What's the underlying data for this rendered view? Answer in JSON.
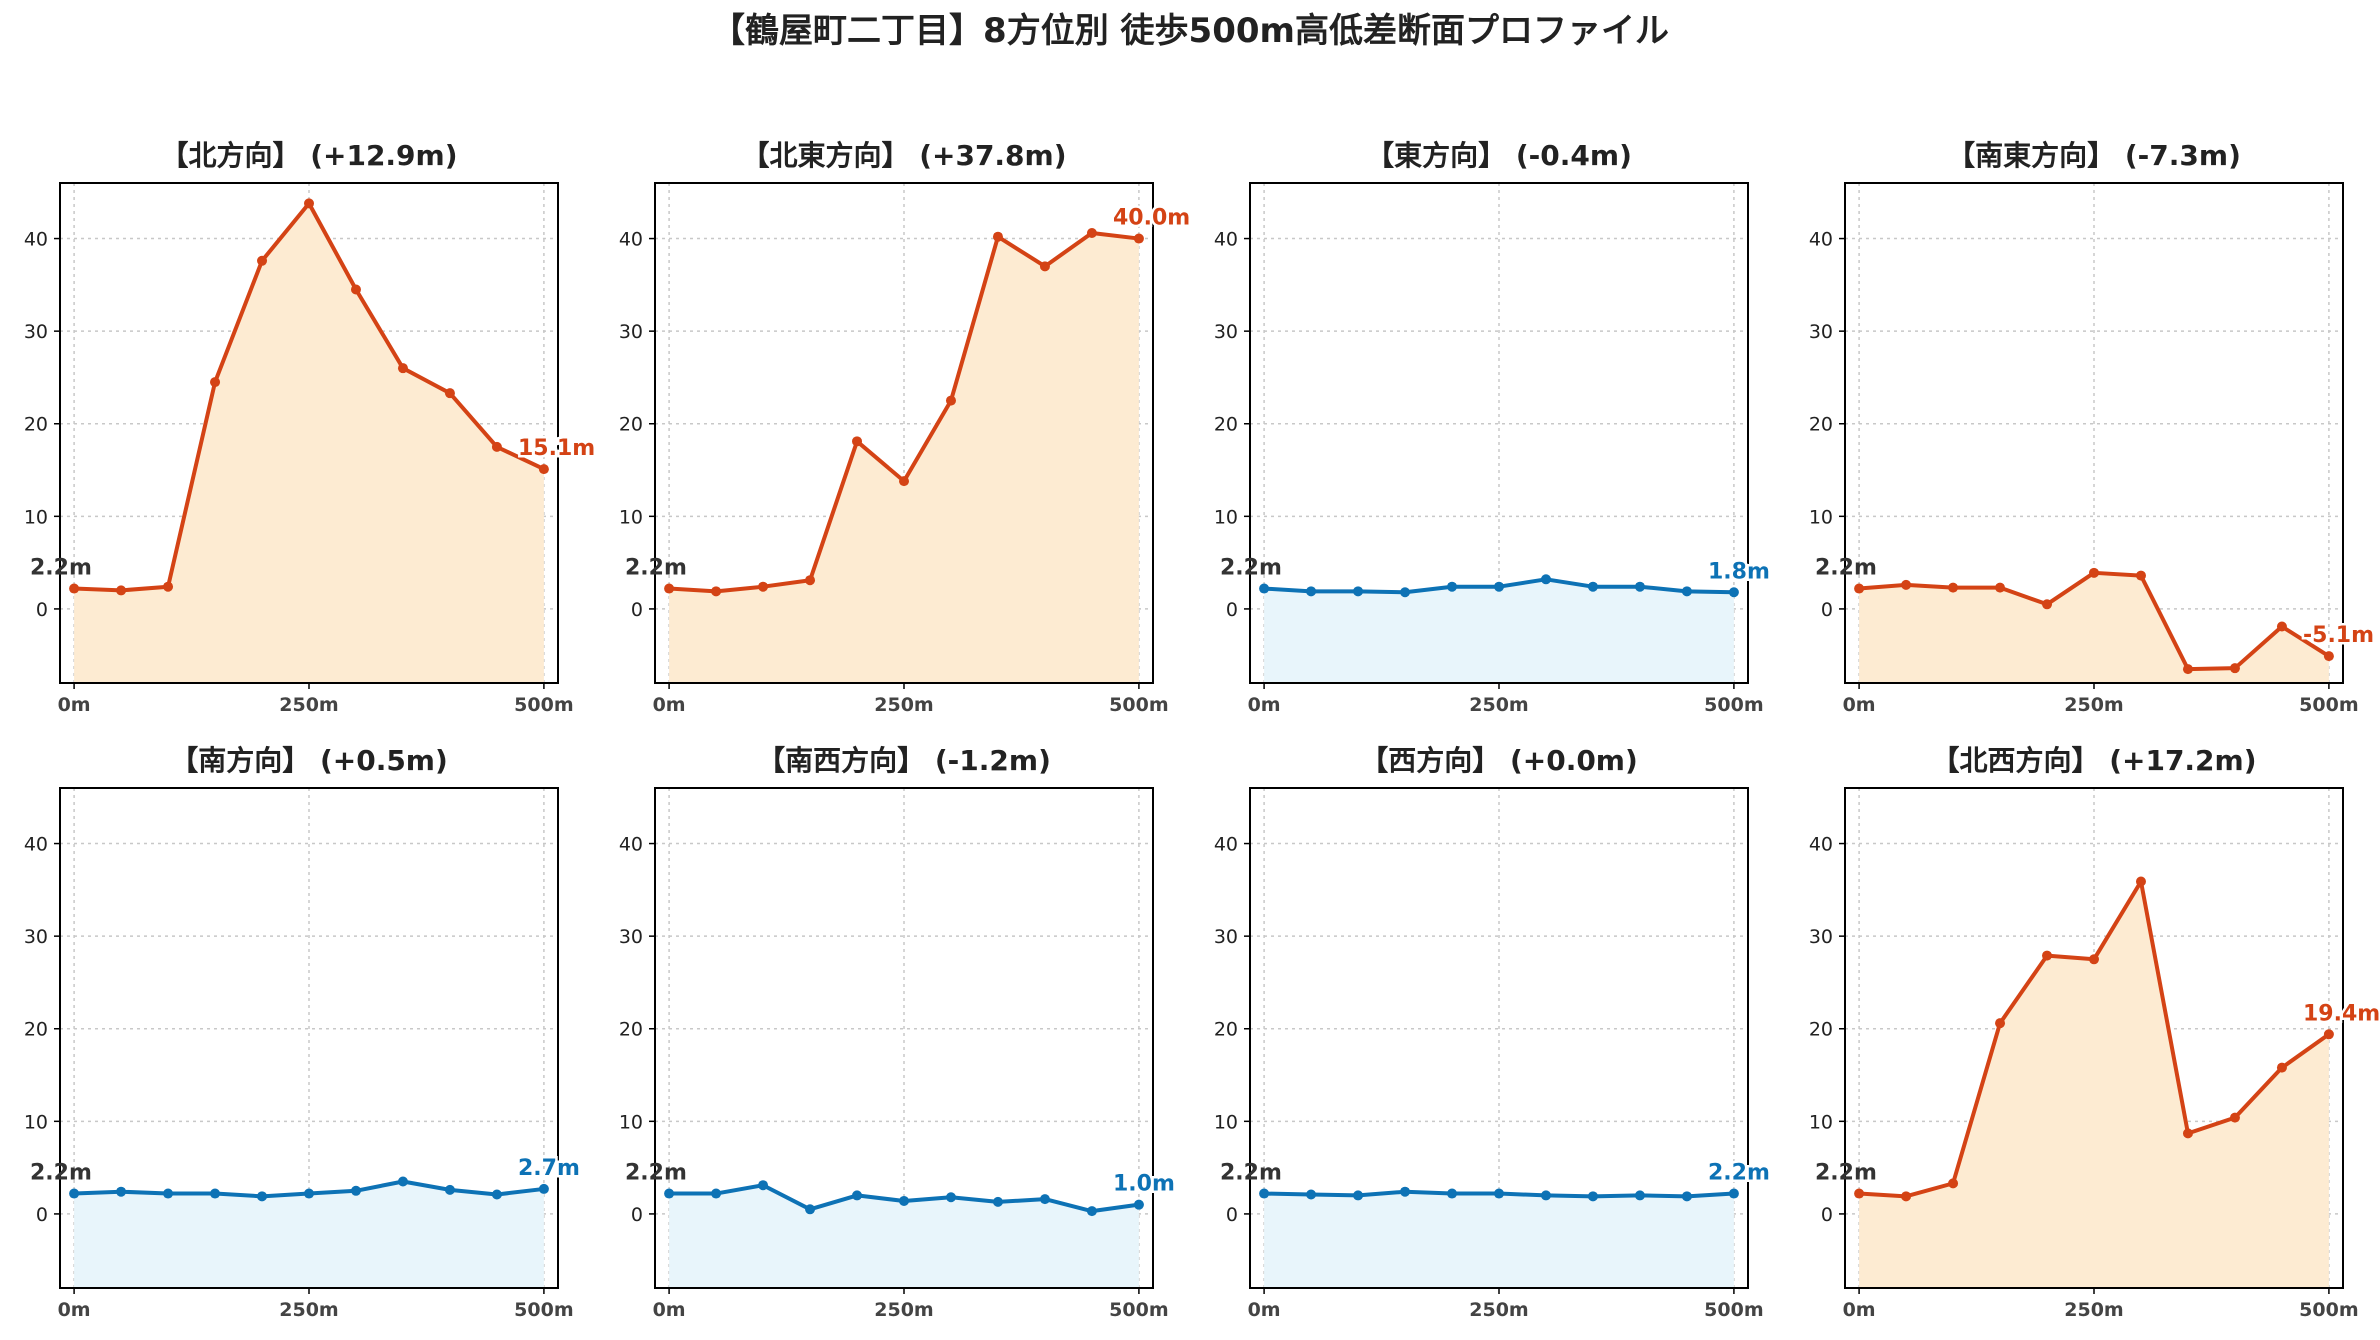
{
  "title": "【鶴屋町二丁目】8方位別 徒歩500m高低差断面プロファイル",
  "colors": {
    "up_line": "#d44315",
    "up_fill": "#fdebd2",
    "flat_line": "#0d72b5",
    "flat_fill": "#e8f5fb",
    "start_label": "#333333"
  },
  "chart_data": [
    {
      "type": "area",
      "title": "【北方向】 (+12.9m)",
      "x": [
        0,
        50,
        100,
        150,
        200,
        250,
        300,
        350,
        400,
        450,
        500
      ],
      "values": [
        2.2,
        2.0,
        2.4,
        24.5,
        37.6,
        43.8,
        34.5,
        26.0,
        23.3,
        17.5,
        15.1
      ],
      "trend": "up",
      "start_label": "2.2m",
      "end_label": "15.1m",
      "xticks": [
        "0m",
        "250m",
        "500m"
      ],
      "xtick_values": [
        0,
        250,
        500
      ],
      "yticks": [
        "0",
        "10",
        "20",
        "30",
        "40"
      ],
      "ytick_values": [
        0,
        10,
        20,
        30,
        40
      ],
      "xlim": [
        -15,
        515
      ],
      "ylim": [
        -8,
        46
      ],
      "grid": true
    },
    {
      "type": "area",
      "title": "【北東方向】 (+37.8m)",
      "x": [
        0,
        50,
        100,
        150,
        200,
        250,
        300,
        350,
        400,
        450,
        500
      ],
      "values": [
        2.2,
        1.9,
        2.4,
        3.1,
        18.1,
        13.8,
        22.5,
        40.2,
        37.0,
        40.6,
        40.0
      ],
      "trend": "up",
      "start_label": "2.2m",
      "end_label": "40.0m",
      "xticks": [
        "0m",
        "250m",
        "500m"
      ],
      "xtick_values": [
        0,
        250,
        500
      ],
      "yticks": [
        "0",
        "10",
        "20",
        "30",
        "40"
      ],
      "ytick_values": [
        0,
        10,
        20,
        30,
        40
      ],
      "xlim": [
        -15,
        515
      ],
      "ylim": [
        -8,
        46
      ],
      "grid": true
    },
    {
      "type": "area",
      "title": "【東方向】 (-0.4m)",
      "x": [
        0,
        50,
        100,
        150,
        200,
        250,
        300,
        350,
        400,
        450,
        500
      ],
      "values": [
        2.2,
        1.9,
        1.9,
        1.8,
        2.4,
        2.4,
        3.2,
        2.4,
        2.4,
        1.9,
        1.8
      ],
      "trend": "flat",
      "start_label": "2.2m",
      "end_label": "1.8m",
      "xticks": [
        "0m",
        "250m",
        "500m"
      ],
      "xtick_values": [
        0,
        250,
        500
      ],
      "yticks": [
        "0",
        "10",
        "20",
        "30",
        "40"
      ],
      "ytick_values": [
        0,
        10,
        20,
        30,
        40
      ],
      "xlim": [
        -15,
        515
      ],
      "ylim": [
        -8,
        46
      ],
      "grid": true
    },
    {
      "type": "area",
      "title": "【南東方向】 (-7.3m)",
      "x": [
        0,
        50,
        100,
        150,
        200,
        250,
        300,
        350,
        400,
        450,
        500
      ],
      "values": [
        2.2,
        2.6,
        2.3,
        2.3,
        0.5,
        3.9,
        3.6,
        -6.5,
        -6.4,
        -1.9,
        -5.1
      ],
      "trend": "up",
      "start_label": "2.2m",
      "end_label": "-5.1m",
      "xticks": [
        "0m",
        "250m",
        "500m"
      ],
      "xtick_values": [
        0,
        250,
        500
      ],
      "yticks": [
        "0",
        "10",
        "20",
        "30",
        "40"
      ],
      "ytick_values": [
        0,
        10,
        20,
        30,
        40
      ],
      "xlim": [
        -15,
        515
      ],
      "ylim": [
        -8,
        46
      ],
      "grid": true
    },
    {
      "type": "area",
      "title": "【南方向】 (+0.5m)",
      "x": [
        0,
        50,
        100,
        150,
        200,
        250,
        300,
        350,
        400,
        450,
        500
      ],
      "values": [
        2.2,
        2.4,
        2.2,
        2.2,
        1.9,
        2.2,
        2.5,
        3.5,
        2.6,
        2.1,
        2.7
      ],
      "trend": "flat",
      "start_label": "2.2m",
      "end_label": "2.7m",
      "xticks": [
        "0m",
        "250m",
        "500m"
      ],
      "xtick_values": [
        0,
        250,
        500
      ],
      "yticks": [
        "0",
        "10",
        "20",
        "30",
        "40"
      ],
      "ytick_values": [
        0,
        10,
        20,
        30,
        40
      ],
      "xlim": [
        -15,
        515
      ],
      "ylim": [
        -8,
        46
      ],
      "grid": true
    },
    {
      "type": "area",
      "title": "【南西方向】 (-1.2m)",
      "x": [
        0,
        50,
        100,
        150,
        200,
        250,
        300,
        350,
        400,
        450,
        500
      ],
      "values": [
        2.2,
        2.2,
        3.1,
        0.5,
        2.0,
        1.4,
        1.8,
        1.3,
        1.6,
        0.3,
        1.0
      ],
      "trend": "flat",
      "start_label": "2.2m",
      "end_label": "1.0m",
      "xticks": [
        "0m",
        "250m",
        "500m"
      ],
      "xtick_values": [
        0,
        250,
        500
      ],
      "yticks": [
        "0",
        "10",
        "20",
        "30",
        "40"
      ],
      "ytick_values": [
        0,
        10,
        20,
        30,
        40
      ],
      "xlim": [
        -15,
        515
      ],
      "ylim": [
        -8,
        46
      ],
      "grid": true
    },
    {
      "type": "area",
      "title": "【西方向】 (+0.0m)",
      "x": [
        0,
        50,
        100,
        150,
        200,
        250,
        300,
        350,
        400,
        450,
        500
      ],
      "values": [
        2.2,
        2.1,
        2.0,
        2.4,
        2.2,
        2.2,
        2.0,
        1.9,
        2.0,
        1.9,
        2.2
      ],
      "trend": "flat",
      "start_label": "2.2m",
      "end_label": "2.2m",
      "xticks": [
        "0m",
        "250m",
        "500m"
      ],
      "xtick_values": [
        0,
        250,
        500
      ],
      "yticks": [
        "0",
        "10",
        "20",
        "30",
        "40"
      ],
      "ytick_values": [
        0,
        10,
        20,
        30,
        40
      ],
      "xlim": [
        -15,
        515
      ],
      "ylim": [
        -8,
        46
      ],
      "grid": true
    },
    {
      "type": "area",
      "title": "【北西方向】 (+17.2m)",
      "x": [
        0,
        50,
        100,
        150,
        200,
        250,
        300,
        350,
        400,
        450,
        500
      ],
      "values": [
        2.2,
        1.9,
        3.3,
        20.6,
        27.9,
        27.5,
        35.9,
        8.7,
        10.4,
        15.8,
        19.4
      ],
      "trend": "up",
      "start_label": "2.2m",
      "end_label": "19.4m",
      "xticks": [
        "0m",
        "250m",
        "500m"
      ],
      "xtick_values": [
        0,
        250,
        500
      ],
      "yticks": [
        "0",
        "10",
        "20",
        "30",
        "40"
      ],
      "ytick_values": [
        0,
        10,
        20,
        30,
        40
      ],
      "xlim": [
        -15,
        515
      ],
      "ylim": [
        -8,
        46
      ],
      "grid": true
    }
  ]
}
